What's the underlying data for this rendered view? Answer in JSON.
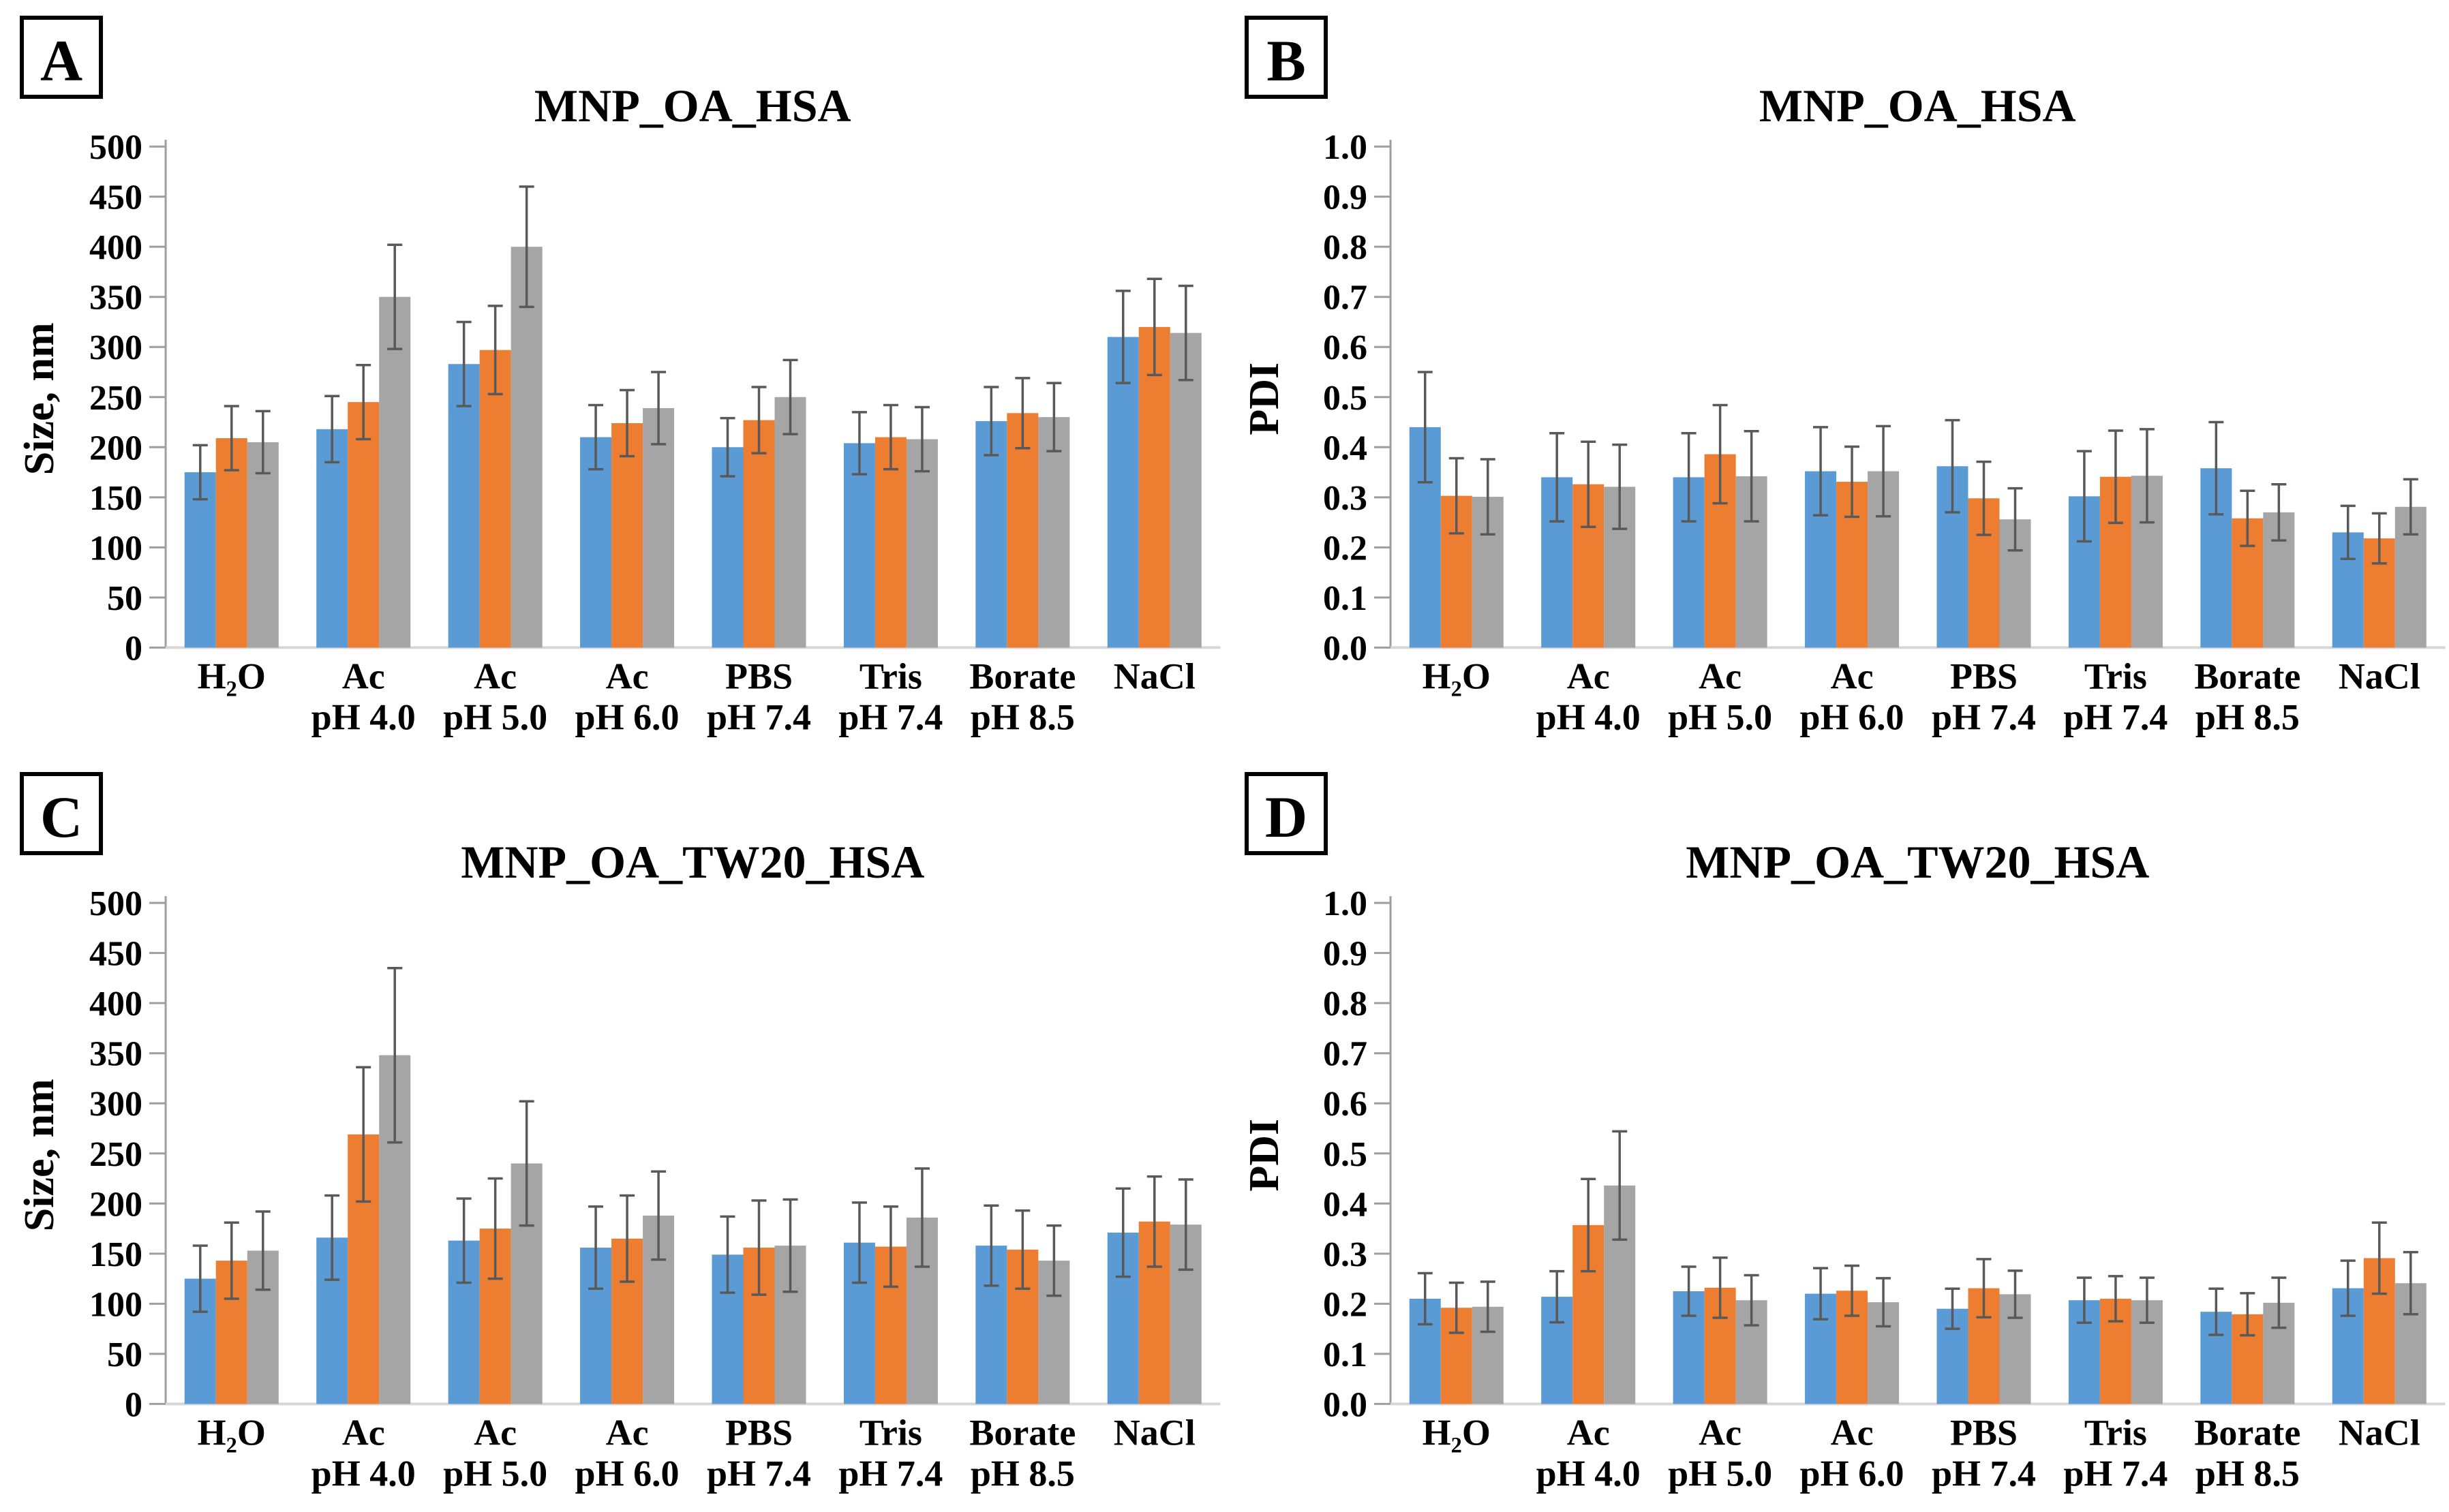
{
  "colors": {
    "series": [
      "#5B9BD5",
      "#ED7D31",
      "#A5A5A5"
    ],
    "error_bar": "#595959",
    "axis_line": "#9E9E9E",
    "tick_line": "#9E9E9E",
    "baseline": "#D6D6D6",
    "text": "#000000"
  },
  "chart_data": [
    {
      "panel_label": "A",
      "type": "bar",
      "title": "MNP_OA_HSA",
      "ylabel": "Size, nm",
      "xlabel": "",
      "ylim": [
        0,
        500
      ],
      "ytick_step": 50,
      "ytick_decimals": 0,
      "grid": false,
      "legend_position": "none",
      "categories": [
        {
          "line1": "H₂O",
          "line2": ""
        },
        {
          "line1": "Ac",
          "line2": "pH 4.0"
        },
        {
          "line1": "Ac",
          "line2": "pH 5.0"
        },
        {
          "line1": "Ac",
          "line2": "pH 6.0"
        },
        {
          "line1": "PBS",
          "line2": "pH 7.4"
        },
        {
          "line1": "Tris",
          "line2": "pH 7.4"
        },
        {
          "line1": "Borate",
          "line2": "pH 8.5"
        },
        {
          "line1": "NaCl",
          "line2": ""
        }
      ],
      "series": [
        {
          "color": "#5B9BD5",
          "values": [
            175,
            218,
            283,
            210,
            200,
            204,
            226,
            310
          ],
          "errors": [
            27,
            33,
            42,
            32,
            29,
            31,
            34,
            46
          ]
        },
        {
          "color": "#ED7D31",
          "values": [
            209,
            245,
            297,
            224,
            227,
            210,
            234,
            320
          ],
          "errors": [
            32,
            37,
            44,
            33,
            33,
            32,
            35,
            48
          ]
        },
        {
          "color": "#A5A5A5",
          "values": [
            205,
            350,
            400,
            239,
            250,
            208,
            230,
            314
          ],
          "errors": [
            31,
            52,
            60,
            36,
            37,
            32,
            34,
            47
          ]
        }
      ]
    },
    {
      "panel_label": "B",
      "type": "bar",
      "title": "MNP_OA_HSA",
      "ylabel": "PDI",
      "xlabel": "",
      "ylim": [
        0,
        1.0
      ],
      "ytick_step": 0.1,
      "ytick_decimals": 1,
      "grid": false,
      "legend_position": "none",
      "categories": [
        {
          "line1": "H₂O",
          "line2": ""
        },
        {
          "line1": "Ac",
          "line2": "pH 4.0"
        },
        {
          "line1": "Ac",
          "line2": "pH 5.0"
        },
        {
          "line1": "Ac",
          "line2": "pH 6.0"
        },
        {
          "line1": "PBS",
          "line2": "pH 7.4"
        },
        {
          "line1": "Tris",
          "line2": "pH 7.4"
        },
        {
          "line1": "Borate",
          "line2": "pH 8.5"
        },
        {
          "line1": "NaCl",
          "line2": ""
        }
      ],
      "series": [
        {
          "color": "#5B9BD5",
          "values": [
            0.44,
            0.34,
            0.34,
            0.352,
            0.362,
            0.302,
            0.358,
            0.23
          ],
          "errors": [
            0.11,
            0.088,
            0.088,
            0.088,
            0.092,
            0.09,
            0.092,
            0.053
          ]
        },
        {
          "color": "#ED7D31",
          "values": [
            0.303,
            0.326,
            0.386,
            0.331,
            0.298,
            0.341,
            0.258,
            0.218
          ],
          "errors": [
            0.075,
            0.085,
            0.098,
            0.07,
            0.073,
            0.092,
            0.055,
            0.05
          ]
        },
        {
          "color": "#A5A5A5",
          "values": [
            0.301,
            0.321,
            0.342,
            0.352,
            0.256,
            0.343,
            0.27,
            0.281
          ],
          "errors": [
            0.075,
            0.084,
            0.09,
            0.09,
            0.062,
            0.093,
            0.056,
            0.055
          ]
        }
      ]
    },
    {
      "panel_label": "C",
      "type": "bar",
      "title": "MNP_OA_TW20_HSA",
      "ylabel": "Size, nm",
      "xlabel": "",
      "ylim": [
        0,
        500
      ],
      "ytick_step": 50,
      "ytick_decimals": 0,
      "grid": false,
      "legend_position": "none",
      "categories": [
        {
          "line1": "H₂O",
          "line2": ""
        },
        {
          "line1": "Ac",
          "line2": "pH 4.0"
        },
        {
          "line1": "Ac",
          "line2": "pH 5.0"
        },
        {
          "line1": "Ac",
          "line2": "pH 6.0"
        },
        {
          "line1": "PBS",
          "line2": "pH 7.4"
        },
        {
          "line1": "Tris",
          "line2": "pH 7.4"
        },
        {
          "line1": "Borate",
          "line2": "pH 8.5"
        },
        {
          "line1": "NaCl",
          "line2": ""
        }
      ],
      "series": [
        {
          "color": "#5B9BD5",
          "values": [
            125,
            166,
            163,
            156,
            149,
            161,
            158,
            171
          ],
          "errors": [
            33,
            42,
            42,
            41,
            38,
            40,
            40,
            44
          ]
        },
        {
          "color": "#ED7D31",
          "values": [
            143,
            269,
            175,
            165,
            156,
            157,
            154,
            182
          ],
          "errors": [
            38,
            67,
            50,
            43,
            47,
            40,
            39,
            45
          ]
        },
        {
          "color": "#A5A5A5",
          "values": [
            153,
            348,
            240,
            188,
            158,
            186,
            143,
            179
          ],
          "errors": [
            39,
            87,
            62,
            44,
            46,
            49,
            35,
            45
          ]
        }
      ]
    },
    {
      "panel_label": "D",
      "type": "bar",
      "title": "MNP_OA_TW20_HSA",
      "ylabel": "PDI",
      "xlabel": "",
      "ylim": [
        0,
        1.0
      ],
      "ytick_step": 0.1,
      "ytick_decimals": 1,
      "grid": false,
      "legend_position": "none",
      "categories": [
        {
          "line1": "H₂O",
          "line2": ""
        },
        {
          "line1": "Ac",
          "line2": "pH 4.0"
        },
        {
          "line1": "Ac",
          "line2": "pH 5.0"
        },
        {
          "line1": "Ac",
          "line2": "pH 6.0"
        },
        {
          "line1": "PBS",
          "line2": "pH 7.4"
        },
        {
          "line1": "Tris",
          "line2": "pH 7.4"
        },
        {
          "line1": "Borate",
          "line2": "pH 8.5"
        },
        {
          "line1": "NaCl",
          "line2": ""
        }
      ],
      "series": [
        {
          "color": "#5B9BD5",
          "values": [
            0.21,
            0.214,
            0.225,
            0.22,
            0.19,
            0.207,
            0.184,
            0.231
          ],
          "errors": [
            0.051,
            0.051,
            0.049,
            0.051,
            0.04,
            0.045,
            0.046,
            0.055
          ]
        },
        {
          "color": "#ED7D31",
          "values": [
            0.192,
            0.357,
            0.232,
            0.226,
            0.231,
            0.21,
            0.179,
            0.291
          ],
          "errors": [
            0.05,
            0.092,
            0.06,
            0.05,
            0.058,
            0.045,
            0.042,
            0.071
          ]
        },
        {
          "color": "#A5A5A5",
          "values": [
            0.194,
            0.436,
            0.207,
            0.203,
            0.219,
            0.207,
            0.202,
            0.241
          ],
          "errors": [
            0.05,
            0.108,
            0.05,
            0.048,
            0.047,
            0.045,
            0.05,
            0.062
          ]
        }
      ]
    }
  ]
}
